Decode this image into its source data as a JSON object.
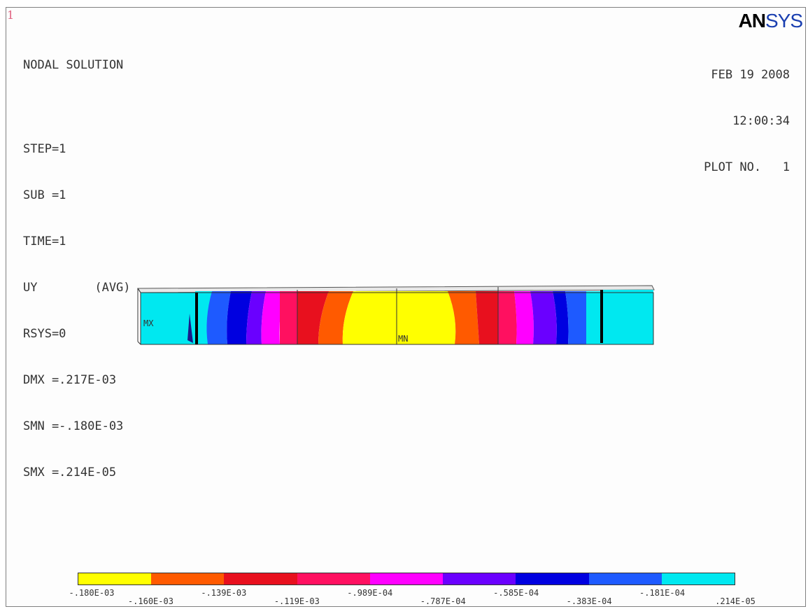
{
  "window_number": "1",
  "info": {
    "title": "NODAL SOLUTION",
    "lines": [
      "STEP=1",
      "SUB =1",
      "TIME=1",
      "UY        (AVG)",
      "RSYS=0",
      "DMX =.217E-03",
      "SMN =-.180E-03",
      "SMX =.214E-05"
    ]
  },
  "logo": {
    "an": "AN",
    "sys": "SYS"
  },
  "stamp": {
    "date": "FEB 19 2008",
    "time": "12:00:34",
    "plot": "PLOT NO.   1"
  },
  "markers": {
    "mx": "MX",
    "mn": "MN"
  },
  "legend": {
    "colors": [
      "#ffff00",
      "#ff5a00",
      "#e8101e",
      "#ff1060",
      "#ff00ff",
      "#6a00ff",
      "#0000e0",
      "#1e5aff",
      "#00e8f0"
    ],
    "labels": [
      "-.180E-03",
      "-.160E-03",
      "-.139E-03",
      "-.119E-03",
      "-.989E-04",
      "-.787E-04",
      "-.585E-04",
      "-.383E-04",
      "-.181E-04",
      ".214E-05"
    ]
  }
}
